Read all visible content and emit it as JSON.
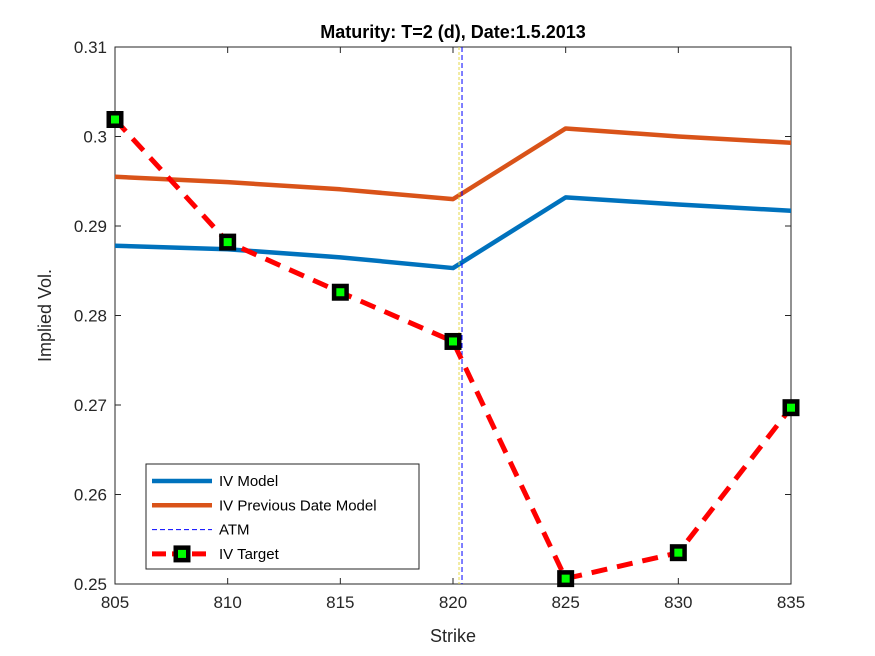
{
  "chart_data": {
    "type": "line",
    "title": "Maturity: T=2 (d), Date:1.5.2013",
    "xlabel": "Strike",
    "ylabel": "Implied Vol.",
    "xlim": [
      805,
      835
    ],
    "ylim": [
      0.25,
      0.31
    ],
    "xticks": [
      "805",
      "810",
      "815",
      "820",
      "825",
      "830",
      "835"
    ],
    "yticks": [
      "0.25",
      "0.26",
      "0.27",
      "0.28",
      "0.29",
      "0.3",
      "0.31"
    ],
    "grid": false,
    "legend_position": "bottom-left",
    "atm_x": 820.4,
    "series": [
      {
        "name": "IV Model",
        "style": "solid",
        "color": "#0072BD",
        "x": [
          805,
          810,
          815,
          820,
          825,
          830,
          835
        ],
        "y": [
          0.2878,
          0.2874,
          0.2865,
          0.2853,
          0.2932,
          0.2924,
          0.2917
        ]
      },
      {
        "name": "IV Previous Date Model",
        "style": "solid",
        "color": "#D95319",
        "x": [
          805,
          810,
          815,
          820,
          825,
          830,
          835
        ],
        "y": [
          0.2955,
          0.2949,
          0.2941,
          0.293,
          0.3009,
          0.3,
          0.2993
        ]
      },
      {
        "name": "ATM",
        "style": "dashed-vertical",
        "color": "#0000FF",
        "x": [
          820.4,
          820.4
        ],
        "y": [
          0.25,
          0.31
        ]
      },
      {
        "name": "IV Target",
        "style": "dashed-markers",
        "color": "#FF0000",
        "marker_fill": "#00FF00",
        "x": [
          805,
          810,
          815,
          820,
          825,
          830,
          835
        ],
        "y": [
          0.3019,
          0.2882,
          0.2826,
          0.2771,
          0.2506,
          0.2535,
          0.2697
        ]
      }
    ]
  }
}
